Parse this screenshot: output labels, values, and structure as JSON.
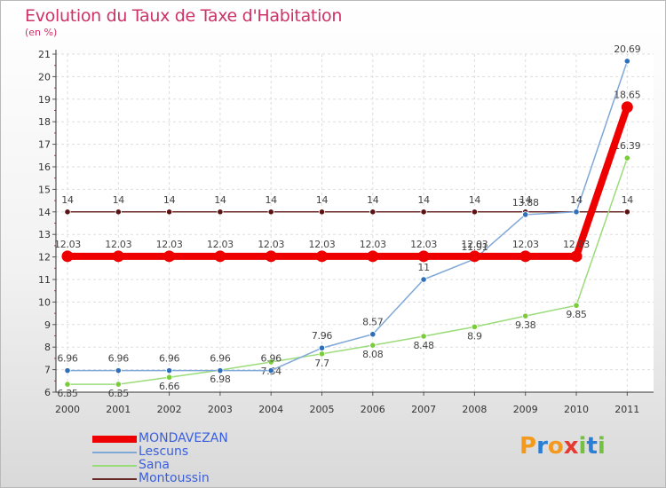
{
  "title": "Evolution du Taux de Taxe d'Habitation",
  "unit": "(en %)",
  "logo": {
    "text": "Proxiti",
    "letters": [
      {
        "ch": "P",
        "color": "#f39a1e"
      },
      {
        "ch": "r",
        "color": "#2a7fd4"
      },
      {
        "ch": "o",
        "color": "#f39a1e"
      },
      {
        "ch": "x",
        "color": "#e53a2f"
      },
      {
        "ch": "i",
        "color": "#74c043"
      },
      {
        "ch": "t",
        "color": "#2a7fd4"
      },
      {
        "ch": "i",
        "color": "#74c043"
      }
    ]
  },
  "chart_data": {
    "type": "line",
    "x": [
      "2000",
      "2001",
      "2002",
      "2003",
      "2004",
      "2005",
      "2006",
      "2007",
      "2008",
      "2009",
      "2010",
      "2011"
    ],
    "ylim": [
      6,
      21
    ],
    "yticks": [
      "6",
      "7",
      "8",
      "9",
      "10",
      "11",
      "12",
      "13",
      "14",
      "15",
      "16",
      "17",
      "18",
      "19",
      "20",
      "21"
    ],
    "grid": true,
    "legend_position": "bottom-left",
    "series": [
      {
        "name": "Montoussin",
        "color": "#6b2a2a",
        "point_color": "#5a1212",
        "values": [
          14,
          14,
          14,
          14,
          14,
          14,
          14,
          14,
          14,
          14,
          14,
          14
        ],
        "labels": [
          "14",
          "14",
          "14",
          "14",
          "14",
          "14",
          "14",
          "14",
          "14",
          "14",
          "14",
          "14"
        ]
      },
      {
        "name": "Sana",
        "color": "#9bdc7a",
        "point_color": "#7acc3a",
        "values": [
          6.35,
          6.35,
          6.66,
          6.98,
          7.34,
          7.7,
          8.08,
          8.48,
          8.9,
          9.38,
          9.85,
          16.39
        ],
        "labels": [
          "6.35",
          "6.35",
          "6.66",
          "6.98",
          "7.34",
          "7.7",
          "8.08",
          "8.48",
          "8.9",
          "9.38",
          "9.85",
          "16.39"
        ]
      },
      {
        "name": "Lescuns",
        "color": "#7fa8d8",
        "point_color": "#2f6fb9",
        "values": [
          6.96,
          6.96,
          6.96,
          6.96,
          6.96,
          7.96,
          8.57,
          11,
          11.91,
          13.88,
          14,
          20.69
        ],
        "labels": [
          "6.96",
          "6.96",
          "6.96",
          "6.96",
          "6.96",
          "7.96",
          "8.57",
          "11",
          "11.91",
          "13.88",
          "14",
          "20.69"
        ]
      },
      {
        "name": "MONDAVEZAN",
        "color": "#ee0000",
        "point_color": "#ee0000",
        "values": [
          12.03,
          12.03,
          12.03,
          12.03,
          12.03,
          12.03,
          12.03,
          12.03,
          12.03,
          12.03,
          12.03,
          18.65
        ],
        "labels": [
          "12.03",
          "12.03",
          "12.03",
          "12.03",
          "12.03",
          "12.03",
          "12.03",
          "12.03",
          "12.03",
          "12.03",
          "12.03",
          "18.65"
        ]
      }
    ],
    "legend": [
      "MONDAVEZAN",
      "Lescuns",
      "Sana",
      "Montoussin"
    ]
  }
}
